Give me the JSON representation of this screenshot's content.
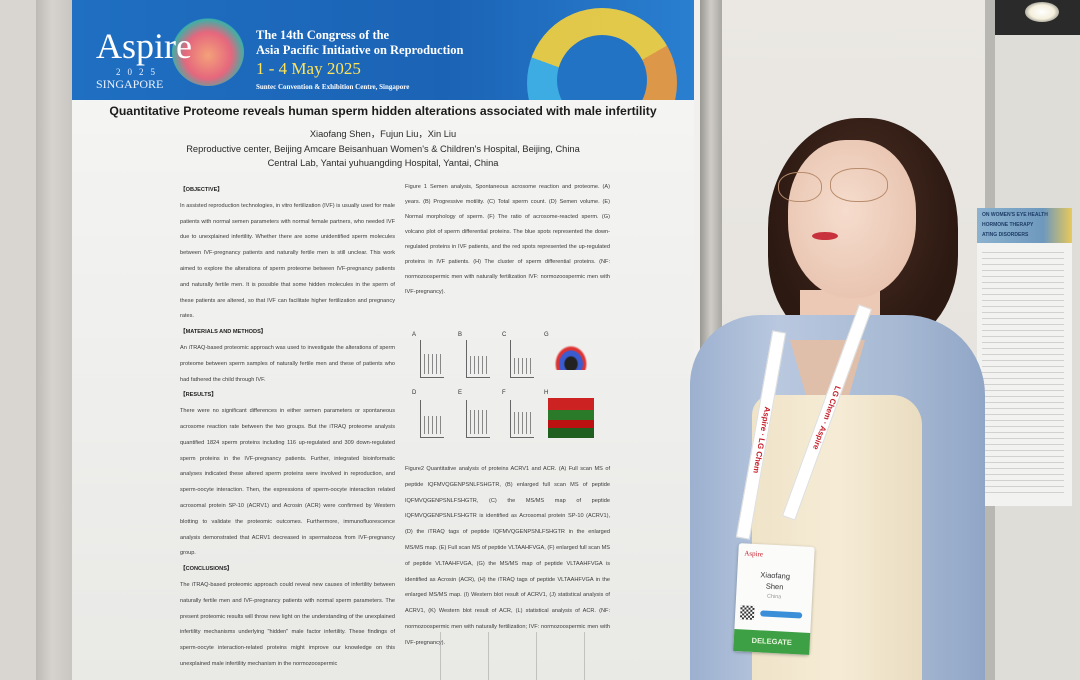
{
  "banner": {
    "logo_word": "Aspire",
    "logo_year": "2025",
    "logo_city": "SINGAPORE",
    "congress_line1": "The 14th Congress of the",
    "congress_line2": "Asia Pacific Initiative on Reproduction",
    "dates": "1 - 4 May 2025",
    "venue": "Suntec Convention & Exhibition Centre, Singapore"
  },
  "poster": {
    "title": "Quantitative Proteome reveals human sperm hidden alterations associated with male infertility",
    "authors": "Xiaofang Shen，Fujun Liu，Xin Liu",
    "affiliation1": "Reproductive center, Beijing Amcare Beisanhuan Women's & Children's Hospital, Beijing, China",
    "affiliation2": "Central Lab, Yantai yuhuangding Hospital, Yantai, China",
    "objective_head": "【OBJECTIVE】",
    "objective": "In assisted reproduction technologies, in vitro fertilization (IVF) is usually used for male patients with normal semen parameters with normal female partners, who needed IVF due to unexplained infertility. Whether there are some unidentified sperm molecules between IVF-pregnancy patients and naturally fertile men is still unclear. This work aimed to explore the alterations of sperm proteome between IVF-pregnancy patients and naturally fertile men. It is possible that some hidden molecules in the sperm of these patients are altered, so that IVF can facilitate higher fertilization and pregnancy rates.",
    "methods_head": "【MATERIALS AND METHODS】",
    "methods": "An iTRAQ-based proteomic approach was used to investigate the alterations of sperm proteome between sperm samples of naturally fertile men and these of patients who had fathered the child through IVF.",
    "results_head": "【RESULTS】",
    "results": "There were no significant differences in either semen parameters or spontaneous acrosome reaction rate between the two groups. But the iTRAQ proteome analysis quantified 1824 sperm proteins including 116 up-regulated and 309 down-regulated sperm proteins in the IVF-pregnancy patients. Further, integrated bioinformatic analyses indicated these altered sperm proteins were involved in reproduction, and sperm-oocyte interaction. Then, the expressions of sperm-oocyte interaction related acrosomal protein SP-10 (ACRV1) and Acrosin (ACR) were confirmed by Western blotting to validate the proteomic outcomes. Furthermore, immunofluorescence analysis demonstrated that ACRV1 decreased in spermatozoa from IVF-pregnancy group.",
    "conclusions_head": "【CONCLUSIONS】",
    "conclusions": "The iTRAQ-based proteomic approach could reveal new causes of infertility between naturally fertile men and IVF-pregnancy patients with normal sperm parameters. The present proteomic results will throw new light on the understanding of the unexplained infertility mechanisms underlying \"hidden\" male factor infertility. These findings of sperm-oocyte interaction-related proteins might improve our knowledge on this unexplained male infertility mechanism in the normozoospermic",
    "figure1_caption": "Figure 1 Semen analysis, Spontaneous acrosome reaction and proteome. (A) years. (B) Progressive motility. (C) Total sperm count. (D) Semen volume. (E) Normal morphology of sperm. (F) The ratio of acrosome-reacted sperm. (G) volcano plot of sperm differential proteins. The blue spots represented the down-regulated proteins in IVF patients, and the red spots represented the up-regulated proteins in IVF patients. (H) The cluster of sperm differential proteins. (NF: normozoospermic men with naturally fertilization IVF: normozoospermic men with IVF-pregnancy).",
    "figure1_panels": [
      "A",
      "B",
      "C",
      "G",
      "D",
      "E",
      "F",
      "H"
    ],
    "figure2_caption": "Figure2 Quantitative analysis of proteins ACRV1 and ACR. (A) Full scan MS of peptide IQFMVQGENPSNLFSHGTR, (B) enlarged full scan MS of peptide IQFMVQGENPSNLFSHGTR, (C) the MS/MS map of peptide IQFMVQGENPSNLFSHGTR is identified as Acrosomal protein SP-10 (ACRV1), (D) the iTRAQ tags of peptide IQFMVQGENPSNLFSHGTR in the enlarged MS/MS map. (E) Full scan MS of peptide VLTAAHFVGA, (F) enlarged full scan MS of peptide VLTAAHFVGA, (G) the MS/MS map of peptide VLTAAHFVGA is identified as Acrosin (ACR), (H) the iTRAQ tags of peptide VLTAAHFVGA in the enlarged MS/MS map. (I) Western blot result of ACRV1, (J) statistical analysis of ACRV1, (K) Western blot result of ACR, (L) statistical analysis of ACR. (NF: normozoospermic men with naturally fertilization; IVF: normozoospermic men with IVF-pregnancy)."
  },
  "lanyard": {
    "left_text": "Aspire · LG Chem",
    "right_text": "LG Chem · Aspire"
  },
  "badge": {
    "logo": "Aspire",
    "first_name": "Xiaofang",
    "last_name": "Shen",
    "country": "China",
    "role": "DELEGATE"
  },
  "side_poster": {
    "line1": "ON WOMEN'S EYE HEALTH",
    "line2": "HORMONE THERAPY",
    "line3": "ATING DISORDERS"
  },
  "colors": {
    "banner_blue": "#1f6fc2",
    "dates_yellow": "#ffe45a",
    "delegate_green": "#3ea044",
    "lanyard_red": "#c8202c"
  }
}
